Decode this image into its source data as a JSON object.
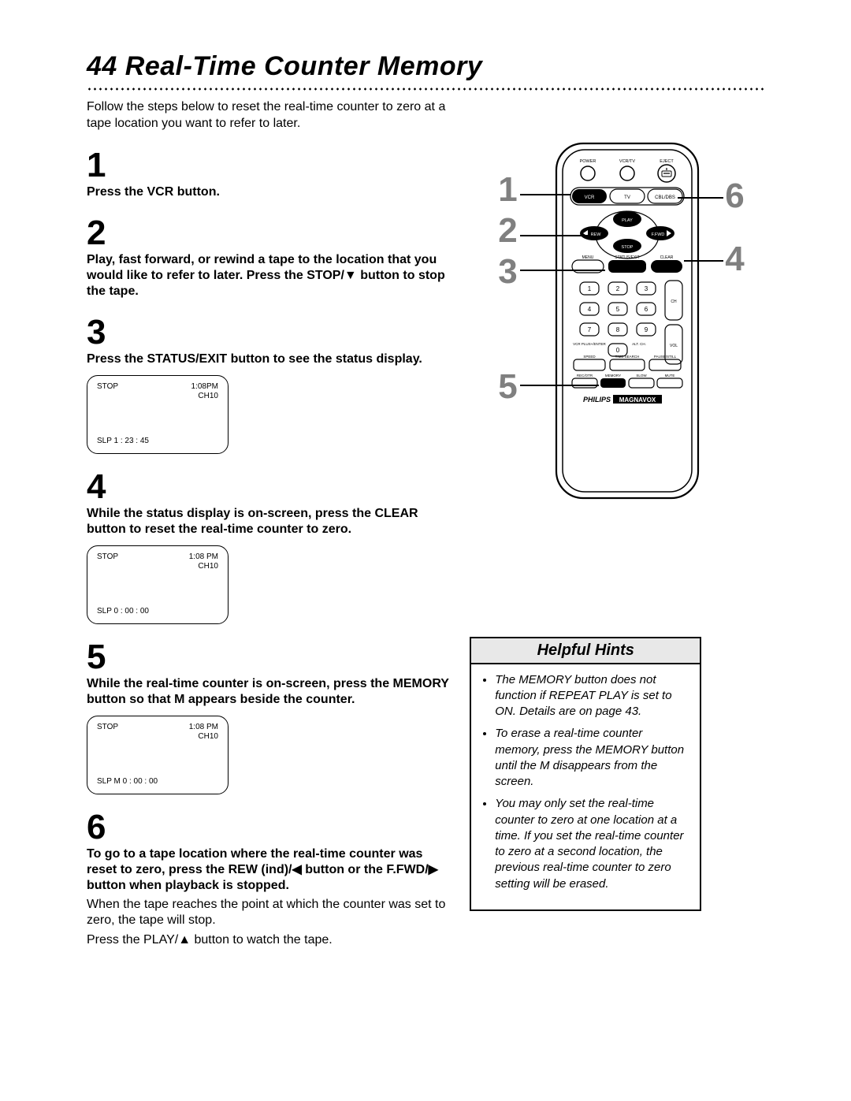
{
  "page_number": "44",
  "title": "Real-Time Counter Memory",
  "intro": "Follow the steps below to reset the real-time counter to zero at a tape location you want to refer to later.",
  "steps": [
    {
      "num": "1",
      "text": "Press the VCR button."
    },
    {
      "num": "2",
      "text": "Play, fast forward, or rewind a tape to the location that you would like to refer to later. Press the STOP/▼ button to stop the tape."
    },
    {
      "num": "3",
      "text": "Press the STATUS/EXIT button to see the status display."
    },
    {
      "num": "4",
      "text": "While the status display is on-screen, press the CLEAR button to reset the real-time counter to zero."
    },
    {
      "num": "5",
      "text": "While the real-time counter is on-screen, press the MEMORY button so that M appears beside the counter."
    },
    {
      "num": "6",
      "text": "To go to a tape location where the real-time counter was reset to zero, press the REW (ind)/◀ button or the F.FWD/▶ button when playback is stopped."
    }
  ],
  "step6_plain1": "When the tape reaches the point at which the counter was set to zero, the tape will stop.",
  "step6_plain2": "Press the PLAY/▲ button to watch the tape.",
  "osd": [
    {
      "tl": "STOP",
      "time": "1:08PM",
      "ch": "CH10",
      "bl": "SLP       1 : 23 : 45"
    },
    {
      "tl": "STOP",
      "time": "1:08 PM",
      "ch": "CH10",
      "bl": "SLP       0 : 00 : 00"
    },
    {
      "tl": "STOP",
      "time": "1:08 PM",
      "ch": "CH10",
      "bl": "SLP   M   0 : 00 : 00"
    }
  ],
  "hints_title": "Helpful Hints",
  "hints": [
    "The MEMORY button does not function if REPEAT PLAY is set to ON. Details are on page 43.",
    "To erase a real-time counter memory, press the MEMORY button until the M disappears from the screen.",
    "You may only set the real-time counter to zero at one location at a time. If you set the real-time counter to zero at a second location, the previous real-time counter to zero setting will be erased."
  ],
  "remote": {
    "top_row": [
      "POWER",
      "VCR/TV",
      "EJECT"
    ],
    "mode_row": [
      "VCR",
      "TV",
      "CBL/DBS"
    ],
    "play": "PLAY",
    "rew": "REW",
    "ffwd": "F.FWD",
    "stop": "STOP",
    "row_m": [
      "MENU",
      "STATUS/EXIT",
      "CLEAR"
    ],
    "numpad": [
      "1",
      "2",
      "3",
      "4",
      "5",
      "6",
      "7",
      "8",
      "9",
      "0"
    ],
    "side_r": [
      "CH",
      "VOL"
    ],
    "bot1_left": "VCR PLUS+/ENTER",
    "bot1_mid": "ALT. CH.",
    "bot2": [
      "SPEED",
      "TIME SEARCH",
      "PAUSE/STILL"
    ],
    "bot3": [
      "REC/OTR",
      "MEMORY",
      "SLOW",
      "MUTE"
    ],
    "brand": "PHILIPS",
    "brand2": "MAGNAVOX"
  },
  "callouts_left": [
    "1",
    "2",
    "3",
    "5"
  ],
  "callouts_right": [
    "6",
    "4"
  ],
  "colors": {
    "grey": "#808080",
    "line": "#000000"
  }
}
